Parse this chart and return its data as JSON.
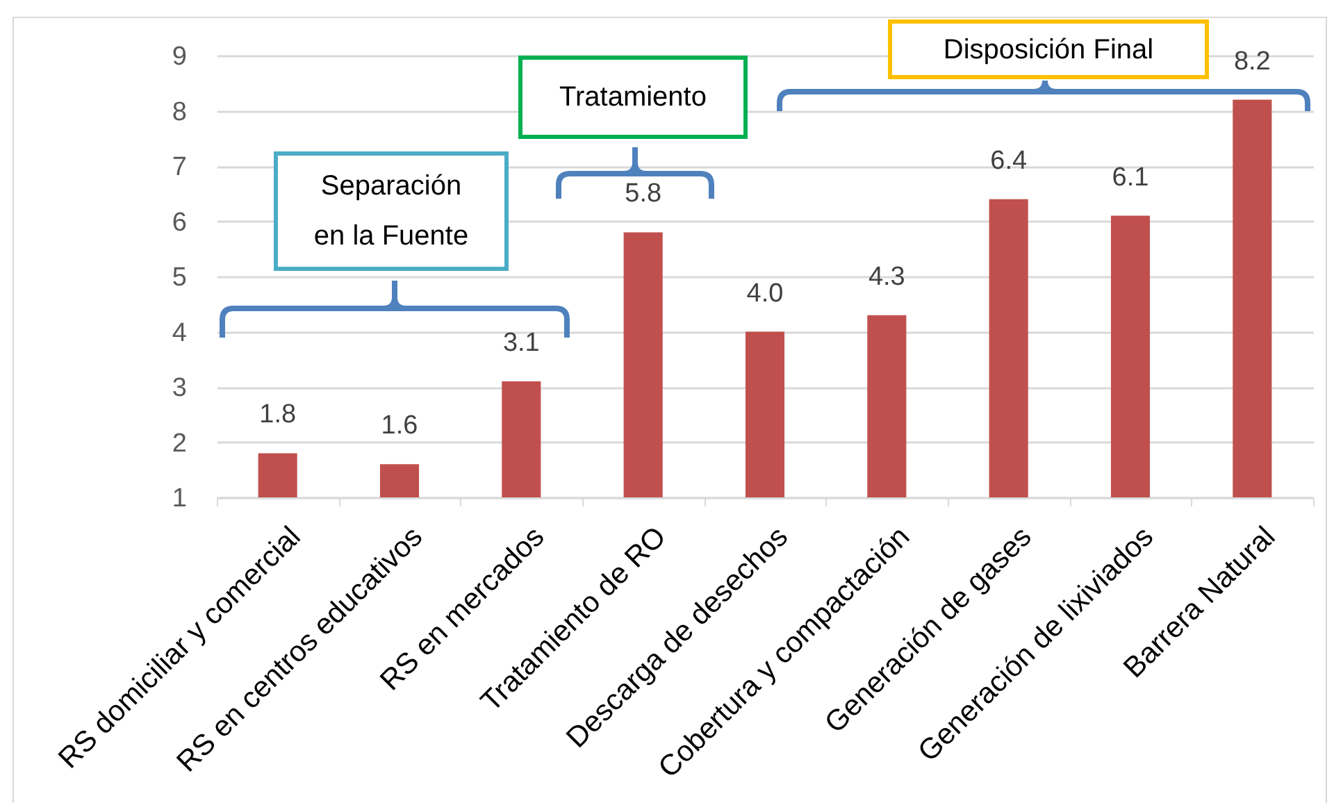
{
  "chart_data": {
    "type": "bar",
    "categories": [
      "RS domiciliar y comercial",
      "RS en centros educativos",
      "RS en mercados",
      "Tratamiento de RO",
      "Descarga de desechos",
      "Cobertura y compactación",
      "Generación de gases",
      "Generación de lixiviados",
      "Barrera Natural"
    ],
    "values": [
      1.8,
      1.6,
      3.1,
      5.8,
      4.0,
      4.3,
      6.4,
      6.1,
      8.2
    ],
    "value_labels": [
      "1.8",
      "1.6",
      "3.1",
      "5.8",
      "4.0",
      "4.3",
      "6.4",
      "6.1",
      "8.2"
    ],
    "color": "#c0504d",
    "ylim": [
      1,
      9
    ],
    "yticks": [
      1,
      2,
      3,
      4,
      5,
      6,
      7,
      8,
      9
    ],
    "grid": "y",
    "annotations": [
      "Separación en la Fuente",
      "Tratamiento",
      "Disposición Final"
    ]
  }
}
